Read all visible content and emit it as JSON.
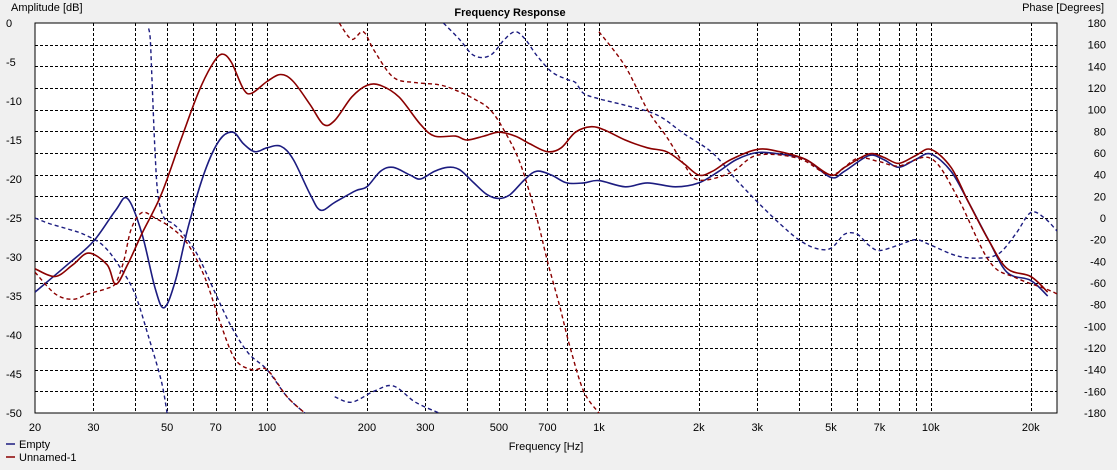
{
  "chart_data": {
    "type": "line",
    "title": "Frequency Response",
    "xlabel": "Frequency [Hz]",
    "ylabel_left": "Amplitude [dB]",
    "ylabel_right": "Phase [Degrees]",
    "x_scale": "log",
    "xlim": [
      20,
      24000
    ],
    "ylim_left": [
      -50,
      0
    ],
    "ylim_right": [
      -180,
      180
    ],
    "grid": true,
    "legend_position": "bottom-left",
    "x_ticks": [
      {
        "v": 20,
        "label": "20"
      },
      {
        "v": 30,
        "label": "30"
      },
      {
        "v": 50,
        "label": "50"
      },
      {
        "v": 70,
        "label": "70"
      },
      {
        "v": 100,
        "label": "100"
      },
      {
        "v": 200,
        "label": "200"
      },
      {
        "v": 300,
        "label": "300"
      },
      {
        "v": 500,
        "label": "500"
      },
      {
        "v": 700,
        "label": "700"
      },
      {
        "v": 1000,
        "label": "1k"
      },
      {
        "v": 2000,
        "label": "2k"
      },
      {
        "v": 3000,
        "label": "3k"
      },
      {
        "v": 5000,
        "label": "5k"
      },
      {
        "v": 7000,
        "label": "7k"
      },
      {
        "v": 10000,
        "label": "10k"
      },
      {
        "v": 20000,
        "label": "20k"
      }
    ],
    "x_minor_grid": [
      40,
      60,
      80,
      90,
      400,
      600,
      800,
      900,
      4000,
      6000,
      8000,
      9000
    ],
    "y_left_ticks": [
      0,
      -5,
      -10,
      -15,
      -20,
      -25,
      -30,
      -35,
      -40,
      -45,
      -50
    ],
    "y_right_ticks": [
      180,
      160,
      140,
      120,
      100,
      80,
      60,
      40,
      20,
      0,
      -20,
      -40,
      -60,
      -80,
      -100,
      -120,
      -140,
      -160,
      -180
    ],
    "series": [
      {
        "name": "Empty",
        "color": "#1c1c80",
        "amplitude": [
          [
            20,
            -34.5
          ],
          [
            25,
            -31
          ],
          [
            30,
            -28
          ],
          [
            35,
            -24
          ],
          [
            38,
            -22.5
          ],
          [
            42,
            -27
          ],
          [
            46,
            -34
          ],
          [
            49,
            -36.5
          ],
          [
            53,
            -33
          ],
          [
            58,
            -26
          ],
          [
            65,
            -19
          ],
          [
            72,
            -15
          ],
          [
            79,
            -14
          ],
          [
            85,
            -15.5
          ],
          [
            92,
            -16.5
          ],
          [
            100,
            -16
          ],
          [
            110,
            -15.8
          ],
          [
            120,
            -17.5
          ],
          [
            135,
            -22
          ],
          [
            145,
            -24
          ],
          [
            160,
            -23
          ],
          [
            185,
            -21.5
          ],
          [
            200,
            -21
          ],
          [
            220,
            -19
          ],
          [
            240,
            -18.5
          ],
          [
            270,
            -19.5
          ],
          [
            290,
            -20
          ],
          [
            320,
            -19
          ],
          [
            350,
            -18.5
          ],
          [
            380,
            -18.8
          ],
          [
            420,
            -20.5
          ],
          [
            460,
            -22
          ],
          [
            500,
            -22.5
          ],
          [
            540,
            -22
          ],
          [
            600,
            -20
          ],
          [
            650,
            -19
          ],
          [
            720,
            -19.5
          ],
          [
            800,
            -20.5
          ],
          [
            900,
            -20.5
          ],
          [
            1000,
            -20.2
          ],
          [
            1200,
            -21
          ],
          [
            1400,
            -20.5
          ],
          [
            1700,
            -21
          ],
          [
            2000,
            -20.5
          ],
          [
            2300,
            -19
          ],
          [
            2600,
            -17.5
          ],
          [
            3000,
            -16.6
          ],
          [
            3500,
            -16.8
          ],
          [
            4200,
            -17.5
          ],
          [
            5000,
            -19.8
          ],
          [
            5500,
            -19
          ],
          [
            6500,
            -17
          ],
          [
            7200,
            -17.5
          ],
          [
            8000,
            -18.5
          ],
          [
            9000,
            -17.5
          ],
          [
            10000,
            -16.8
          ],
          [
            11500,
            -19
          ],
          [
            13000,
            -23
          ],
          [
            15000,
            -28
          ],
          [
            17000,
            -32
          ],
          [
            20000,
            -33
          ],
          [
            22500,
            -35
          ]
        ],
        "phase": [
          [
            20,
            0
          ],
          [
            22,
            -5
          ],
          [
            25,
            -10
          ],
          [
            28,
            -15
          ],
          [
            32,
            -25
          ],
          [
            36,
            -45
          ],
          [
            40,
            -70
          ],
          [
            44,
            -110
          ],
          [
            48,
            -150
          ],
          [
            50,
            -180
          ],
          null,
          [
            44,
            175
          ],
          [
            44.5,
            165
          ],
          [
            45,
            130
          ],
          [
            46,
            60
          ],
          [
            47,
            20
          ],
          [
            49,
            0
          ],
          [
            52,
            -5
          ],
          [
            56,
            -15
          ],
          [
            62,
            -35
          ],
          [
            70,
            -70
          ],
          [
            78,
            -100
          ],
          [
            88,
            -125
          ],
          [
            100,
            -140
          ],
          [
            115,
            -165
          ],
          [
            130,
            -180
          ],
          null,
          [
            160,
            -165
          ],
          [
            180,
            -170
          ],
          [
            210,
            -160
          ],
          [
            240,
            -155
          ],
          [
            280,
            -170
          ],
          [
            330,
            -180
          ],
          null,
          [
            340,
            180
          ],
          [
            380,
            165
          ],
          [
            420,
            150
          ],
          [
            470,
            150
          ],
          [
            520,
            165
          ],
          [
            560,
            172
          ],
          [
            600,
            165
          ],
          [
            650,
            150
          ],
          [
            720,
            135
          ],
          [
            800,
            128
          ],
          [
            850,
            125
          ],
          [
            900,
            115
          ],
          [
            1000,
            110
          ],
          [
            1200,
            104
          ],
          [
            1500,
            95
          ],
          [
            1800,
            78
          ],
          [
            2200,
            60
          ],
          [
            2600,
            35
          ],
          [
            3000,
            15
          ],
          [
            3500,
            -5
          ],
          [
            4000,
            -20
          ],
          [
            4500,
            -28
          ],
          [
            5000,
            -28
          ],
          [
            5500,
            -15
          ],
          [
            6000,
            -15
          ],
          [
            6500,
            -25
          ],
          [
            7000,
            -30
          ],
          [
            8000,
            -25
          ],
          [
            9000,
            -20
          ],
          [
            10000,
            -25
          ],
          [
            12000,
            -35
          ],
          [
            14000,
            -37
          ],
          [
            16000,
            -33
          ],
          [
            18000,
            -15
          ],
          [
            20000,
            5
          ],
          [
            22000,
            0
          ],
          [
            24000,
            -12
          ]
        ]
      },
      {
        "name": "Unnamed-1",
        "color": "#8b0000",
        "amplitude": [
          [
            20,
            -31.5
          ],
          [
            23,
            -32.5
          ],
          [
            26,
            -31
          ],
          [
            29,
            -29.5
          ],
          [
            33,
            -31
          ],
          [
            35,
            -33.5
          ],
          [
            38,
            -31
          ],
          [
            42,
            -27
          ],
          [
            48,
            -22
          ],
          [
            55,
            -15
          ],
          [
            62,
            -9
          ],
          [
            68,
            -5.5
          ],
          [
            73,
            -4
          ],
          [
            78,
            -5
          ],
          [
            85,
            -8.5
          ],
          [
            90,
            -9
          ],
          [
            100,
            -7.5
          ],
          [
            110,
            -6.6
          ],
          [
            120,
            -7.5
          ],
          [
            135,
            -10.5
          ],
          [
            148,
            -13
          ],
          [
            160,
            -12.5
          ],
          [
            180,
            -9.5
          ],
          [
            200,
            -8
          ],
          [
            220,
            -8
          ],
          [
            250,
            -9.5
          ],
          [
            290,
            -13
          ],
          [
            320,
            -14.5
          ],
          [
            370,
            -14.5
          ],
          [
            400,
            -15
          ],
          [
            450,
            -14.5
          ],
          [
            500,
            -14
          ],
          [
            560,
            -14.5
          ],
          [
            620,
            -15.5
          ],
          [
            700,
            -16.5
          ],
          [
            770,
            -16
          ],
          [
            850,
            -14
          ],
          [
            950,
            -13.3
          ],
          [
            1050,
            -13.8
          ],
          [
            1200,
            -15
          ],
          [
            1400,
            -16
          ],
          [
            1600,
            -16.5
          ],
          [
            1800,
            -18
          ],
          [
            2000,
            -19.5
          ],
          [
            2200,
            -19
          ],
          [
            2500,
            -17.5
          ],
          [
            3000,
            -16.2
          ],
          [
            3500,
            -16.5
          ],
          [
            4200,
            -17.5
          ],
          [
            5000,
            -19.5
          ],
          [
            5500,
            -18.5
          ],
          [
            6500,
            -16.8
          ],
          [
            7200,
            -17.2
          ],
          [
            8000,
            -18
          ],
          [
            9000,
            -17
          ],
          [
            10000,
            -16.2
          ],
          [
            11500,
            -18.5
          ],
          [
            13000,
            -23
          ],
          [
            15000,
            -28
          ],
          [
            17000,
            -31.5
          ],
          [
            20000,
            -32.5
          ],
          [
            22500,
            -34.5
          ]
        ],
        "phase": [
          [
            20,
            -50
          ],
          [
            23,
            -70
          ],
          [
            26,
            -75
          ],
          [
            29,
            -70
          ],
          [
            33,
            -65
          ],
          [
            35,
            -60
          ],
          [
            37,
            -40
          ],
          [
            39,
            -10
          ],
          [
            42,
            5
          ],
          [
            46,
            0
          ],
          [
            52,
            -10
          ],
          [
            58,
            -25
          ],
          [
            65,
            -55
          ],
          [
            72,
            -95
          ],
          [
            80,
            -130
          ],
          [
            90,
            -140
          ],
          [
            100,
            -140
          ],
          [
            115,
            -165
          ],
          [
            130,
            -180
          ],
          null,
          [
            165,
            180
          ],
          [
            180,
            165
          ],
          [
            195,
            172
          ],
          [
            210,
            155
          ],
          [
            240,
            130
          ],
          [
            280,
            125
          ],
          [
            330,
            123
          ],
          [
            370,
            118
          ],
          [
            420,
            110
          ],
          [
            470,
            100
          ],
          [
            520,
            80
          ],
          [
            580,
            50
          ],
          [
            650,
            0
          ],
          [
            700,
            -40
          ],
          [
            760,
            -80
          ],
          [
            820,
            -120
          ],
          [
            900,
            -160
          ],
          [
            1000,
            -180
          ],
          null,
          [
            1000,
            172
          ],
          [
            1200,
            140
          ],
          [
            1400,
            100
          ],
          [
            1600,
            75
          ],
          [
            1800,
            50
          ],
          [
            2000,
            35
          ],
          [
            2500,
            42
          ],
          [
            3000,
            58
          ],
          [
            4000,
            55
          ],
          [
            5000,
            40
          ],
          [
            6000,
            55
          ],
          [
            7000,
            52
          ],
          [
            8000,
            48
          ],
          [
            10000,
            55
          ],
          [
            12000,
            20
          ],
          [
            15000,
            -40
          ],
          [
            18000,
            -55
          ],
          [
            22000,
            -65
          ],
          [
            24000,
            -70
          ]
        ]
      }
    ]
  },
  "legend": {
    "items": [
      {
        "label": "Empty",
        "color": "#1c1c80"
      },
      {
        "label": "Unnamed-1",
        "color": "#8b0000"
      }
    ]
  }
}
